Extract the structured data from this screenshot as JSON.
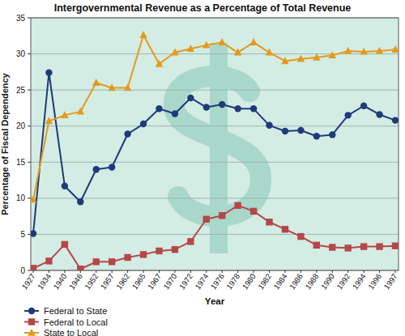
{
  "chart_data": {
    "type": "line",
    "title": "Intergovernmental Revenue as a Percentage of Total Revenue",
    "x_label": "Year",
    "y_label": "Percentage of Fiscal Dependency",
    "categories": [
      "1927",
      "1934",
      "1940",
      "1946",
      "1952",
      "1957",
      "1962",
      "1965",
      "1967",
      "1970",
      "1972",
      "1974",
      "1976",
      "1978",
      "1980",
      "1982",
      "1984",
      "1986",
      "1988",
      "1990",
      "1992",
      "1994",
      "1996",
      "1997"
    ],
    "series": [
      {
        "name": "Federal to State",
        "color": "#1f3a78",
        "marker": "circle",
        "values": [
          5.1,
          27.4,
          11.7,
          9.5,
          14.0,
          14.3,
          18.9,
          20.3,
          22.4,
          21.7,
          23.9,
          22.6,
          23.0,
          22.4,
          22.4,
          20.1,
          19.3,
          19.4,
          18.6,
          18.8,
          21.5,
          22.8,
          21.6,
          20.8
        ]
      },
      {
        "name": "Federal to Local",
        "color": "#b5474a",
        "marker": "square",
        "values": [
          0.3,
          1.3,
          3.6,
          0.2,
          1.2,
          1.2,
          1.8,
          2.2,
          2.7,
          2.9,
          4.0,
          7.1,
          7.6,
          9.0,
          8.2,
          6.7,
          5.7,
          4.7,
          3.5,
          3.2,
          3.1,
          3.3,
          3.3,
          3.4
        ]
      },
      {
        "name": "State to Local",
        "color": "#e39a1c",
        "marker": "triangle",
        "values": [
          9.8,
          20.7,
          21.5,
          22.0,
          26.0,
          25.3,
          25.3,
          32.6,
          28.6,
          30.2,
          30.7,
          31.2,
          31.6,
          30.2,
          31.6,
          30.2,
          29.0,
          29.3,
          29.5,
          29.8,
          30.4,
          30.3,
          30.4,
          30.6
        ]
      }
    ],
    "ylim": [
      0,
      35
    ],
    "yticks": [
      0,
      5,
      10,
      15,
      20,
      25,
      30,
      35
    ],
    "grid": true,
    "legend": "bottom-left"
  }
}
